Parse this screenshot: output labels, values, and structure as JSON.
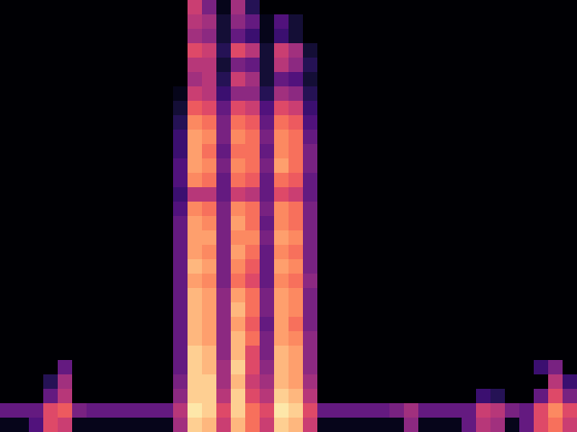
{
  "chart_data": {
    "type": "heatmap",
    "tick_labels": false,
    "color": "magma",
    "zlim": [
      0,
      1
    ],
    "z": [
      [
        0,
        0,
        0,
        0,
        0,
        0,
        0,
        0,
        0,
        0,
        0,
        0,
        0,
        0.55,
        0.35,
        0.05,
        0.45,
        0.15,
        0,
        0,
        0,
        0,
        0,
        0,
        0,
        0,
        0,
        0,
        0,
        0,
        0,
        0,
        0,
        0,
        0,
        0,
        0,
        0,
        0,
        0
      ],
      [
        0,
        0,
        0,
        0,
        0,
        0,
        0,
        0,
        0,
        0,
        0,
        0,
        0,
        0.5,
        0.45,
        0.1,
        0.4,
        0.3,
        0.05,
        0.25,
        0.1,
        0,
        0,
        0,
        0,
        0,
        0,
        0,
        0,
        0,
        0,
        0,
        0,
        0,
        0,
        0,
        0,
        0,
        0,
        0
      ],
      [
        0,
        0,
        0,
        0,
        0,
        0,
        0,
        0,
        0,
        0,
        0,
        0,
        0,
        0.45,
        0.4,
        0.1,
        0.3,
        0.2,
        0.05,
        0.2,
        0.1,
        0,
        0,
        0,
        0,
        0,
        0,
        0,
        0,
        0,
        0,
        0,
        0,
        0,
        0,
        0,
        0,
        0,
        0,
        0
      ],
      [
        0,
        0,
        0,
        0,
        0,
        0,
        0,
        0,
        0,
        0,
        0,
        0,
        0,
        0.6,
        0.55,
        0.15,
        0.6,
        0.5,
        0.1,
        0.55,
        0.45,
        0.1,
        0,
        0,
        0,
        0,
        0,
        0,
        0,
        0,
        0,
        0,
        0,
        0,
        0,
        0,
        0,
        0,
        0,
        0
      ],
      [
        0,
        0,
        0,
        0,
        0,
        0,
        0,
        0,
        0,
        0,
        0,
        0,
        0,
        0.5,
        0.5,
        0.1,
        0.35,
        0.3,
        0.1,
        0.5,
        0.4,
        0.15,
        0,
        0,
        0,
        0,
        0,
        0,
        0,
        0,
        0,
        0,
        0,
        0,
        0,
        0,
        0,
        0,
        0,
        0
      ],
      [
        0,
        0,
        0,
        0,
        0,
        0,
        0,
        0,
        0,
        0,
        0,
        0,
        0,
        0.45,
        0.5,
        0.15,
        0.55,
        0.45,
        0.1,
        0.3,
        0.25,
        0.1,
        0,
        0,
        0,
        0,
        0,
        0,
        0,
        0,
        0,
        0,
        0,
        0,
        0,
        0,
        0,
        0,
        0,
        0
      ],
      [
        0,
        0,
        0,
        0,
        0,
        0,
        0,
        0,
        0,
        0,
        0,
        0,
        0.05,
        0.55,
        0.5,
        0.2,
        0.4,
        0.4,
        0.15,
        0.45,
        0.4,
        0.15,
        0,
        0,
        0,
        0,
        0,
        0,
        0,
        0,
        0,
        0,
        0,
        0,
        0,
        0,
        0,
        0,
        0,
        0
      ],
      [
        0,
        0,
        0,
        0,
        0,
        0,
        0,
        0,
        0,
        0,
        0,
        0,
        0.1,
        0.65,
        0.6,
        0.3,
        0.6,
        0.55,
        0.25,
        0.6,
        0.55,
        0.2,
        0,
        0,
        0,
        0,
        0,
        0,
        0,
        0,
        0,
        0,
        0,
        0,
        0,
        0,
        0,
        0,
        0,
        0
      ],
      [
        0,
        0,
        0,
        0,
        0,
        0,
        0,
        0,
        0,
        0,
        0,
        0,
        0.15,
        0.75,
        0.7,
        0.35,
        0.7,
        0.65,
        0.3,
        0.7,
        0.65,
        0.25,
        0,
        0,
        0,
        0,
        0,
        0,
        0,
        0,
        0,
        0,
        0,
        0,
        0,
        0,
        0,
        0,
        0,
        0
      ],
      [
        0,
        0,
        0,
        0,
        0,
        0,
        0,
        0,
        0,
        0,
        0,
        0,
        0.2,
        0.8,
        0.75,
        0.35,
        0.75,
        0.7,
        0.35,
        0.75,
        0.7,
        0.3,
        0,
        0,
        0,
        0,
        0,
        0,
        0,
        0,
        0,
        0,
        0,
        0,
        0,
        0,
        0,
        0,
        0,
        0
      ],
      [
        0,
        0,
        0,
        0,
        0,
        0,
        0,
        0,
        0,
        0,
        0,
        0,
        0.2,
        0.8,
        0.7,
        0.3,
        0.7,
        0.7,
        0.3,
        0.75,
        0.7,
        0.35,
        0,
        0,
        0,
        0,
        0,
        0,
        0,
        0,
        0,
        0,
        0,
        0,
        0,
        0,
        0,
        0,
        0,
        0
      ],
      [
        0,
        0,
        0,
        0,
        0,
        0,
        0,
        0,
        0,
        0,
        0,
        0,
        0.25,
        0.8,
        0.75,
        0.35,
        0.75,
        0.7,
        0.35,
        0.8,
        0.7,
        0.35,
        0,
        0,
        0,
        0,
        0,
        0,
        0,
        0,
        0,
        0,
        0,
        0,
        0,
        0,
        0,
        0,
        0,
        0
      ],
      [
        0,
        0,
        0,
        0,
        0,
        0,
        0,
        0,
        0,
        0,
        0,
        0,
        0.25,
        0.75,
        0.7,
        0.3,
        0.7,
        0.65,
        0.3,
        0.7,
        0.65,
        0.3,
        0,
        0,
        0,
        0,
        0,
        0,
        0,
        0,
        0,
        0,
        0,
        0,
        0,
        0,
        0,
        0,
        0,
        0
      ],
      [
        0,
        0,
        0,
        0,
        0,
        0,
        0,
        0,
        0,
        0,
        0,
        0,
        0.2,
        0.5,
        0.5,
        0.3,
        0.55,
        0.5,
        0.3,
        0.6,
        0.55,
        0.3,
        0,
        0,
        0,
        0,
        0,
        0,
        0,
        0,
        0,
        0,
        0,
        0,
        0,
        0,
        0,
        0,
        0,
        0
      ],
      [
        0,
        0,
        0,
        0,
        0,
        0,
        0,
        0,
        0,
        0,
        0,
        0,
        0.25,
        0.75,
        0.7,
        0.35,
        0.75,
        0.7,
        0.35,
        0.75,
        0.7,
        0.35,
        0,
        0,
        0,
        0,
        0,
        0,
        0,
        0,
        0,
        0,
        0,
        0,
        0,
        0,
        0,
        0,
        0,
        0
      ],
      [
        0,
        0,
        0,
        0,
        0,
        0,
        0,
        0,
        0,
        0,
        0,
        0,
        0.3,
        0.8,
        0.75,
        0.35,
        0.8,
        0.7,
        0.3,
        0.75,
        0.7,
        0.35,
        0,
        0,
        0,
        0,
        0,
        0,
        0,
        0,
        0,
        0,
        0,
        0,
        0,
        0,
        0,
        0,
        0,
        0
      ],
      [
        0,
        0,
        0,
        0,
        0,
        0,
        0,
        0,
        0,
        0,
        0,
        0,
        0.3,
        0.8,
        0.8,
        0.35,
        0.75,
        0.75,
        0.35,
        0.8,
        0.75,
        0.35,
        0,
        0,
        0,
        0,
        0,
        0,
        0,
        0,
        0,
        0,
        0,
        0,
        0,
        0,
        0,
        0,
        0,
        0
      ],
      [
        0,
        0,
        0,
        0,
        0,
        0,
        0,
        0,
        0,
        0,
        0,
        0,
        0.3,
        0.8,
        0.75,
        0.35,
        0.8,
        0.7,
        0.3,
        0.75,
        0.7,
        0.35,
        0,
        0,
        0,
        0,
        0,
        0,
        0,
        0,
        0,
        0,
        0,
        0,
        0,
        0,
        0,
        0,
        0,
        0
      ],
      [
        0,
        0,
        0,
        0,
        0,
        0,
        0,
        0,
        0,
        0,
        0,
        0,
        0.3,
        0.85,
        0.8,
        0.35,
        0.75,
        0.65,
        0.3,
        0.8,
        0.75,
        0.35,
        0,
        0,
        0,
        0,
        0,
        0,
        0,
        0,
        0,
        0,
        0,
        0,
        0,
        0,
        0,
        0,
        0,
        0
      ],
      [
        0,
        0,
        0,
        0,
        0,
        0,
        0,
        0,
        0,
        0,
        0,
        0,
        0.3,
        0.8,
        0.75,
        0.35,
        0.7,
        0.6,
        0.3,
        0.75,
        0.7,
        0.4,
        0,
        0,
        0,
        0,
        0,
        0,
        0,
        0,
        0,
        0,
        0,
        0,
        0,
        0,
        0,
        0,
        0,
        0
      ],
      [
        0,
        0,
        0,
        0,
        0,
        0,
        0,
        0,
        0,
        0,
        0,
        0,
        0.3,
        0.85,
        0.8,
        0.4,
        0.8,
        0.7,
        0.35,
        0.8,
        0.75,
        0.35,
        0,
        0,
        0,
        0,
        0,
        0,
        0,
        0,
        0,
        0,
        0,
        0,
        0,
        0,
        0,
        0,
        0,
        0
      ],
      [
        0,
        0,
        0,
        0,
        0,
        0,
        0,
        0,
        0,
        0,
        0,
        0,
        0.3,
        0.85,
        0.8,
        0.4,
        0.85,
        0.7,
        0.35,
        0.8,
        0.75,
        0.35,
        0,
        0,
        0,
        0,
        0,
        0,
        0,
        0,
        0,
        0,
        0,
        0,
        0,
        0,
        0,
        0,
        0,
        0
      ],
      [
        0,
        0,
        0,
        0,
        0,
        0,
        0,
        0,
        0,
        0,
        0,
        0,
        0.3,
        0.85,
        0.8,
        0.4,
        0.8,
        0.65,
        0.3,
        0.8,
        0.7,
        0.35,
        0,
        0,
        0,
        0,
        0,
        0,
        0,
        0,
        0,
        0,
        0,
        0,
        0,
        0,
        0,
        0,
        0,
        0
      ],
      [
        0,
        0,
        0,
        0,
        0,
        0,
        0,
        0,
        0,
        0,
        0,
        0,
        0.3,
        0.85,
        0.8,
        0.4,
        0.85,
        0.7,
        0.35,
        0.8,
        0.75,
        0.4,
        0,
        0,
        0,
        0,
        0,
        0,
        0,
        0,
        0,
        0,
        0,
        0,
        0,
        0,
        0,
        0,
        0,
        0
      ],
      [
        0,
        0,
        0,
        0,
        0,
        0,
        0,
        0,
        0,
        0,
        0,
        0,
        0.3,
        0.9,
        0.85,
        0.4,
        0.85,
        0.6,
        0.35,
        0.85,
        0.8,
        0.4,
        0,
        0,
        0,
        0,
        0,
        0,
        0,
        0,
        0,
        0,
        0,
        0,
        0,
        0,
        0,
        0,
        0,
        0
      ],
      [
        0,
        0,
        0,
        0,
        0.3,
        0,
        0,
        0,
        0,
        0,
        0,
        0,
        0.3,
        0.9,
        0.85,
        0.45,
        0.9,
        0.6,
        0.4,
        0.85,
        0.8,
        0.4,
        0,
        0,
        0,
        0,
        0,
        0,
        0,
        0,
        0,
        0,
        0,
        0,
        0,
        0,
        0,
        0.2,
        0.35,
        0
      ],
      [
        0,
        0,
        0,
        0.15,
        0.45,
        0,
        0,
        0,
        0,
        0,
        0,
        0,
        0.35,
        0.9,
        0.9,
        0.45,
        0.85,
        0.55,
        0.45,
        0.85,
        0.8,
        0.45,
        0,
        0,
        0,
        0,
        0,
        0,
        0,
        0,
        0,
        0,
        0,
        0,
        0,
        0,
        0,
        0,
        0.5,
        0.2
      ],
      [
        0,
        0,
        0,
        0.3,
        0.5,
        0,
        0,
        0,
        0,
        0,
        0,
        0,
        0.4,
        0.9,
        0.9,
        0.5,
        0.9,
        0.6,
        0.5,
        0.9,
        0.85,
        0.5,
        0,
        0,
        0,
        0,
        0,
        0,
        0,
        0,
        0,
        0,
        0,
        0.2,
        0.15,
        0,
        0,
        0.3,
        0.6,
        0.35
      ],
      [
        0.3,
        0.3,
        0.3,
        0.6,
        0.65,
        0.35,
        0.3,
        0.3,
        0.3,
        0.3,
        0.3,
        0.3,
        0.5,
        0.95,
        0.9,
        0.6,
        0.9,
        0.7,
        0.6,
        0.95,
        0.9,
        0.6,
        0.3,
        0.3,
        0.3,
        0.3,
        0.3,
        0.35,
        0.45,
        0.3,
        0.3,
        0.3,
        0.3,
        0.55,
        0.5,
        0.35,
        0.3,
        0.6,
        0.75,
        0.6
      ],
      [
        0.05,
        0.05,
        0.25,
        0.6,
        0.55,
        0.05,
        0.05,
        0.05,
        0.05,
        0.05,
        0.05,
        0.05,
        0.45,
        0.9,
        0.85,
        0.55,
        0.85,
        0.7,
        0.55,
        0.9,
        0.85,
        0.55,
        0.05,
        0.05,
        0.05,
        0.05,
        0.05,
        0.05,
        0.4,
        0.05,
        0.05,
        0.05,
        0.3,
        0.5,
        0.45,
        0.05,
        0.3,
        0.6,
        0.7,
        0.55
      ]
    ]
  }
}
